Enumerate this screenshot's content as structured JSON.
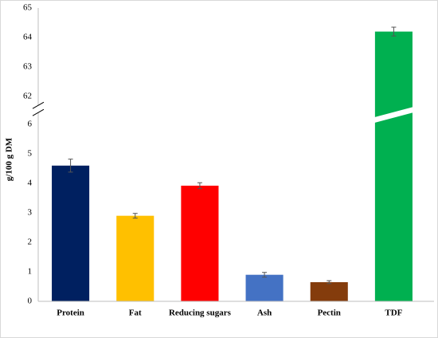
{
  "chart_data": {
    "type": "bar",
    "y_label": "g/100 g DM",
    "categories": [
      "Protein",
      "Fat",
      "Reducing sugars",
      "Ash",
      "Pectin",
      "TDF"
    ],
    "values": [
      4.6,
      2.9,
      3.92,
      0.9,
      0.65,
      64.2
    ],
    "errors": [
      0.22,
      0.08,
      0.1,
      0.08,
      0.05,
      0.15
    ],
    "colors": [
      "#002060",
      "#ffc000",
      "#ff0000",
      "#4472c4",
      "#843c0c",
      "#00b050"
    ],
    "ylim": [
      0,
      65
    ],
    "axis_break": [
      6.4,
      61.7
    ],
    "yticks": [
      0,
      1,
      2,
      3,
      4,
      5,
      6,
      62,
      63,
      64,
      65
    ],
    "grid": false
  }
}
